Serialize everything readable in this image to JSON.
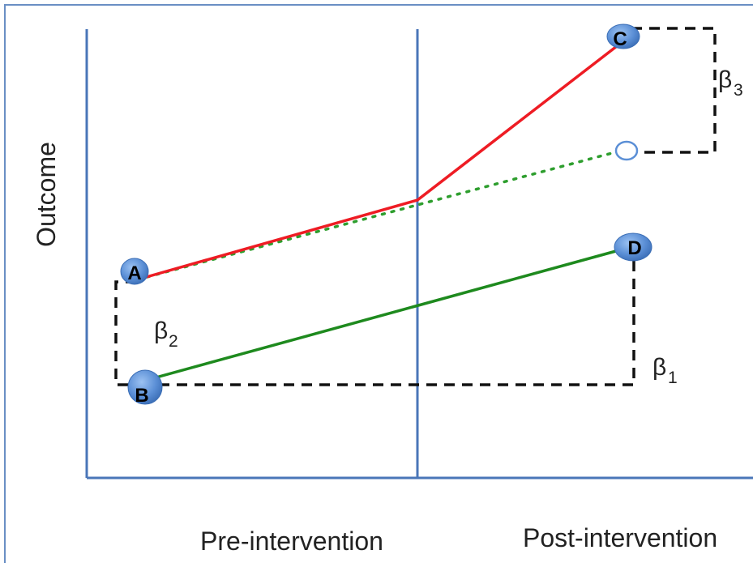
{
  "axes": {
    "y_label": "Outcome",
    "x_label_pre": "Pre-intervention",
    "x_label_post": "Post-intervention"
  },
  "points": {
    "a": "A",
    "b": "B",
    "c": "C",
    "d": "D"
  },
  "betas": {
    "beta1": {
      "symbol": "β",
      "sub": "1"
    },
    "beta2": {
      "symbol": "β",
      "sub": "2"
    },
    "beta3": {
      "symbol": "β",
      "sub": "3"
    }
  },
  "colors": {
    "frame": "#6a8fc4",
    "axis": "#4a76b8",
    "treatment_line": "#ee1c24",
    "control_line": "#1e8a1e",
    "counterfactual_dotted": "#2e9e2e",
    "dashed_bracket": "#111111",
    "point_fill": "#5b8fd6"
  }
}
